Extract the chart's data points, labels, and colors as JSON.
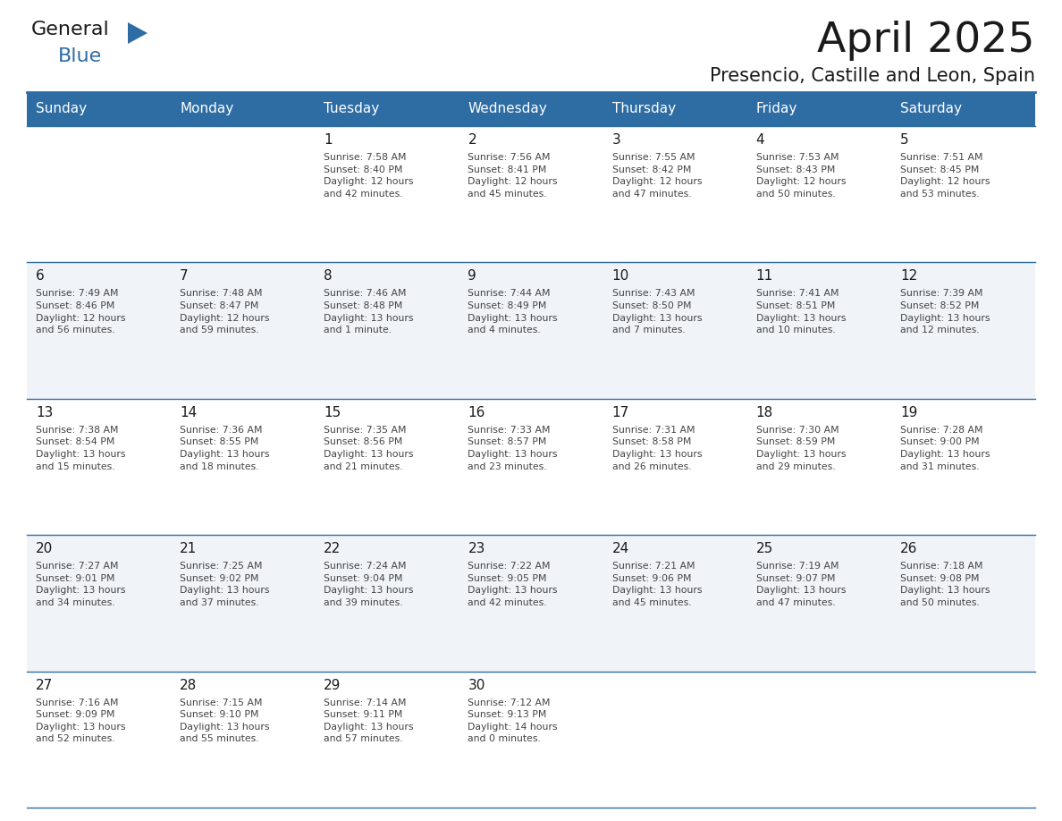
{
  "title": "April 2025",
  "subtitle": "Presencio, Castille and Leon, Spain",
  "days_of_week": [
    "Sunday",
    "Monday",
    "Tuesday",
    "Wednesday",
    "Thursday",
    "Friday",
    "Saturday"
  ],
  "header_bg": "#2E6DA4",
  "header_text": "#FFFFFF",
  "cell_bg_odd": "#FFFFFF",
  "cell_bg_even": "#F0F4F8",
  "cell_border": "#2E6DA4",
  "day_num_color": "#1a1a1a",
  "info_color": "#444444",
  "title_color": "#1a1a1a",
  "subtitle_color": "#1a1a1a",
  "logo_black": "#1a1a1a",
  "logo_blue": "#2E6DA4",
  "weeks": [
    [
      {
        "day": "",
        "info": ""
      },
      {
        "day": "",
        "info": ""
      },
      {
        "day": "1",
        "info": "Sunrise: 7:58 AM\nSunset: 8:40 PM\nDaylight: 12 hours\nand 42 minutes."
      },
      {
        "day": "2",
        "info": "Sunrise: 7:56 AM\nSunset: 8:41 PM\nDaylight: 12 hours\nand 45 minutes."
      },
      {
        "day": "3",
        "info": "Sunrise: 7:55 AM\nSunset: 8:42 PM\nDaylight: 12 hours\nand 47 minutes."
      },
      {
        "day": "4",
        "info": "Sunrise: 7:53 AM\nSunset: 8:43 PM\nDaylight: 12 hours\nand 50 minutes."
      },
      {
        "day": "5",
        "info": "Sunrise: 7:51 AM\nSunset: 8:45 PM\nDaylight: 12 hours\nand 53 minutes."
      }
    ],
    [
      {
        "day": "6",
        "info": "Sunrise: 7:49 AM\nSunset: 8:46 PM\nDaylight: 12 hours\nand 56 minutes."
      },
      {
        "day": "7",
        "info": "Sunrise: 7:48 AM\nSunset: 8:47 PM\nDaylight: 12 hours\nand 59 minutes."
      },
      {
        "day": "8",
        "info": "Sunrise: 7:46 AM\nSunset: 8:48 PM\nDaylight: 13 hours\nand 1 minute."
      },
      {
        "day": "9",
        "info": "Sunrise: 7:44 AM\nSunset: 8:49 PM\nDaylight: 13 hours\nand 4 minutes."
      },
      {
        "day": "10",
        "info": "Sunrise: 7:43 AM\nSunset: 8:50 PM\nDaylight: 13 hours\nand 7 minutes."
      },
      {
        "day": "11",
        "info": "Sunrise: 7:41 AM\nSunset: 8:51 PM\nDaylight: 13 hours\nand 10 minutes."
      },
      {
        "day": "12",
        "info": "Sunrise: 7:39 AM\nSunset: 8:52 PM\nDaylight: 13 hours\nand 12 minutes."
      }
    ],
    [
      {
        "day": "13",
        "info": "Sunrise: 7:38 AM\nSunset: 8:54 PM\nDaylight: 13 hours\nand 15 minutes."
      },
      {
        "day": "14",
        "info": "Sunrise: 7:36 AM\nSunset: 8:55 PM\nDaylight: 13 hours\nand 18 minutes."
      },
      {
        "day": "15",
        "info": "Sunrise: 7:35 AM\nSunset: 8:56 PM\nDaylight: 13 hours\nand 21 minutes."
      },
      {
        "day": "16",
        "info": "Sunrise: 7:33 AM\nSunset: 8:57 PM\nDaylight: 13 hours\nand 23 minutes."
      },
      {
        "day": "17",
        "info": "Sunrise: 7:31 AM\nSunset: 8:58 PM\nDaylight: 13 hours\nand 26 minutes."
      },
      {
        "day": "18",
        "info": "Sunrise: 7:30 AM\nSunset: 8:59 PM\nDaylight: 13 hours\nand 29 minutes."
      },
      {
        "day": "19",
        "info": "Sunrise: 7:28 AM\nSunset: 9:00 PM\nDaylight: 13 hours\nand 31 minutes."
      }
    ],
    [
      {
        "day": "20",
        "info": "Sunrise: 7:27 AM\nSunset: 9:01 PM\nDaylight: 13 hours\nand 34 minutes."
      },
      {
        "day": "21",
        "info": "Sunrise: 7:25 AM\nSunset: 9:02 PM\nDaylight: 13 hours\nand 37 minutes."
      },
      {
        "day": "22",
        "info": "Sunrise: 7:24 AM\nSunset: 9:04 PM\nDaylight: 13 hours\nand 39 minutes."
      },
      {
        "day": "23",
        "info": "Sunrise: 7:22 AM\nSunset: 9:05 PM\nDaylight: 13 hours\nand 42 minutes."
      },
      {
        "day": "24",
        "info": "Sunrise: 7:21 AM\nSunset: 9:06 PM\nDaylight: 13 hours\nand 45 minutes."
      },
      {
        "day": "25",
        "info": "Sunrise: 7:19 AM\nSunset: 9:07 PM\nDaylight: 13 hours\nand 47 minutes."
      },
      {
        "day": "26",
        "info": "Sunrise: 7:18 AM\nSunset: 9:08 PM\nDaylight: 13 hours\nand 50 minutes."
      }
    ],
    [
      {
        "day": "27",
        "info": "Sunrise: 7:16 AM\nSunset: 9:09 PM\nDaylight: 13 hours\nand 52 minutes."
      },
      {
        "day": "28",
        "info": "Sunrise: 7:15 AM\nSunset: 9:10 PM\nDaylight: 13 hours\nand 55 minutes."
      },
      {
        "day": "29",
        "info": "Sunrise: 7:14 AM\nSunset: 9:11 PM\nDaylight: 13 hours\nand 57 minutes."
      },
      {
        "day": "30",
        "info": "Sunrise: 7:12 AM\nSunset: 9:13 PM\nDaylight: 14 hours\nand 0 minutes."
      },
      {
        "day": "",
        "info": ""
      },
      {
        "day": "",
        "info": ""
      },
      {
        "day": "",
        "info": ""
      }
    ]
  ]
}
